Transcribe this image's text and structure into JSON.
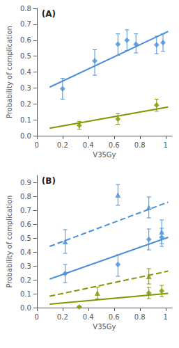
{
  "chart_data": [
    {
      "type": "scatter",
      "annotation": "(A)",
      "xlabel": "V35Gy",
      "ylabel": "Probability of complication",
      "xlim": [
        0,
        1.05
      ],
      "ylim": [
        0,
        0.8
      ],
      "xticks": [
        0,
        0.2,
        0.4,
        0.6,
        0.8,
        1
      ],
      "yticks": [
        {
          "value": 0,
          "label": "0.0"
        },
        0.1,
        0.2,
        0.3,
        0.4,
        0.5,
        0.6,
        0.7,
        0.8
      ],
      "grid": false,
      "series": [
        {
          "type": "line",
          "color": "#7a9a00",
          "line_style": "solid",
          "x": [
            0.1,
            1.02
          ],
          "values": [
            0.047,
            0.18
          ]
        },
        {
          "type": "line",
          "color": "#4a90d9",
          "line_style": "solid",
          "x": [
            0.1,
            1.02
          ],
          "values": [
            0.305,
            0.655
          ]
        },
        {
          "type": "scatter",
          "color": "#7a9a00",
          "marker": "diamond",
          "x": [
            0.33,
            0.63,
            0.93
          ],
          "values": [
            0.065,
            0.105,
            0.192
          ],
          "yerr_lo": [
            0.025,
            0.033,
            0.038
          ],
          "yerr_hi": [
            0.025,
            0.033,
            0.038
          ]
        },
        {
          "type": "scatter",
          "color": "#4a90d9",
          "marker": "diamond",
          "x": [
            0.2,
            0.45,
            0.63,
            0.7,
            0.77,
            0.93,
            0.98
          ],
          "values": [
            0.295,
            0.47,
            0.575,
            0.6,
            0.575,
            0.57,
            0.585
          ],
          "yerr_lo": [
            0.065,
            0.09,
            0.07,
            0.065,
            0.055,
            0.055,
            0.055
          ],
          "yerr_hi": [
            0.065,
            0.07,
            0.065,
            0.065,
            0.065,
            0.055,
            0.055
          ]
        }
      ]
    },
    {
      "type": "scatter",
      "annotation": "(B)",
      "xlabel": "V35Gy",
      "ylabel": "Probability of complication",
      "xlim": [
        0,
        1.05
      ],
      "ylim": [
        0,
        0.95
      ],
      "xticks": [
        0,
        0.2,
        0.4,
        0.6,
        0.8,
        1
      ],
      "yticks": [
        {
          "value": 0,
          "label": "0.0"
        },
        0.1,
        0.2,
        0.3,
        0.4,
        0.5,
        0.6,
        0.7,
        0.8,
        0.9
      ],
      "grid": false,
      "series": [
        {
          "type": "line",
          "color": "#7a9a00",
          "line_style": "solid",
          "x": [
            0.1,
            1.02
          ],
          "values": [
            0.025,
            0.102
          ]
        },
        {
          "type": "line",
          "color": "#7a9a00",
          "line_style": "dashed",
          "x": [
            0.1,
            1.02
          ],
          "values": [
            0.082,
            0.262
          ]
        },
        {
          "type": "line",
          "color": "#4a90d9",
          "line_style": "solid",
          "x": [
            0.1,
            1.02
          ],
          "values": [
            0.205,
            0.505
          ]
        },
        {
          "type": "line",
          "color": "#4a90d9",
          "line_style": "dashed",
          "x": [
            0.1,
            1.02
          ],
          "values": [
            0.44,
            0.758
          ]
        },
        {
          "type": "scatter",
          "color": "#7a9a00",
          "marker": "diamond",
          "x": [
            0.33,
            0.87,
            0.97
          ],
          "values": [
            0.005,
            0.105,
            0.12
          ],
          "yerr_lo": [
            0.005,
            0.04,
            0.04
          ],
          "yerr_hi": [
            0.005,
            0.04,
            0.04
          ]
        },
        {
          "type": "scatter",
          "color": "#7a9a00",
          "marker": "triangle",
          "x": [
            0.47,
            0.87
          ],
          "values": [
            0.105,
            0.225
          ],
          "yerr_lo": [
            0.042,
            0.055
          ],
          "yerr_hi": [
            0.042,
            0.055
          ]
        },
        {
          "type": "scatter",
          "color": "#4a90d9",
          "marker": "diamond",
          "x": [
            0.22,
            0.63,
            0.87,
            0.97
          ],
          "values": [
            0.245,
            0.31,
            0.49,
            0.505
          ],
          "yerr_lo": [
            0.065,
            0.085,
            0.075,
            0.065
          ],
          "yerr_hi": [
            0.065,
            0.07,
            0.075,
            0.065
          ]
        },
        {
          "type": "scatter",
          "color": "#4a90d9",
          "marker": "triangle",
          "x": [
            0.22,
            0.63,
            0.87,
            0.97
          ],
          "values": [
            0.475,
            0.81,
            0.72,
            0.545
          ],
          "yerr_lo": [
            0.085,
            0.075,
            0.075,
            0.085
          ],
          "yerr_hi": [
            0.085,
            0.075,
            0.075,
            0.085
          ]
        }
      ]
    }
  ]
}
